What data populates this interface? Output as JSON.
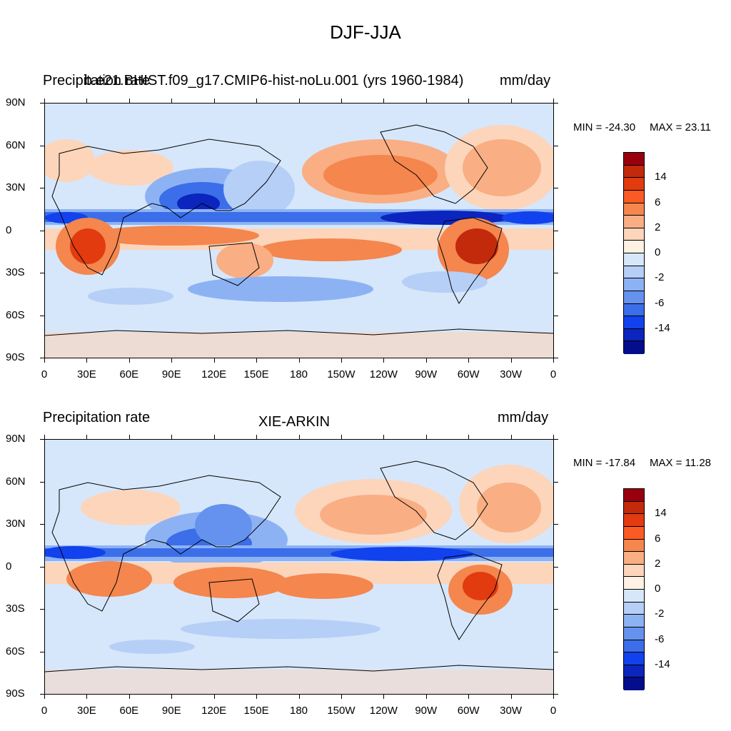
{
  "title": "DJF-JJA",
  "colorbar_colors": [
    "#99000d",
    "#c22a0b",
    "#e23b10",
    "#fc5a24",
    "#f4864e",
    "#f9ae84",
    "#fcd5bb",
    "#fff1e3",
    "#d6e7fb",
    "#b6cff7",
    "#8db2f4",
    "#6592ee",
    "#3b6ee8",
    "#1142ed",
    "#0b25be",
    "#020e8c"
  ],
  "colorbar_labels": [
    "14",
    "6",
    "2",
    "0",
    "-2",
    "-6",
    "-14"
  ],
  "lat_labels": [
    "90N",
    "60N",
    "30N",
    "0",
    "30S",
    "60S",
    "90S"
  ],
  "lon_labels": [
    "0",
    "30E",
    "60E",
    "90E",
    "120E",
    "150E",
    "180",
    "150W",
    "120W",
    "90W",
    "60W",
    "30W",
    "0"
  ],
  "panels": [
    {
      "left_title": "Precipitation rate",
      "center_title": "b.e21.BHIST.f09_g17.CMIP6-hist-noLu.001 (yrs 1960-1984)",
      "units": "mm/day",
      "min_label": "MIN = -24.30",
      "max_label": "MAX =  23.11"
    },
    {
      "left_title": "Precipitation rate",
      "center_title": "XIE-ARKIN",
      "units": "mm/day",
      "min_label": "MIN = -17.84",
      "max_label": "MAX =  11.28"
    }
  ],
  "map_features": {
    "coastlines": "world",
    "field": "precipitation difference DJF minus JJA"
  }
}
